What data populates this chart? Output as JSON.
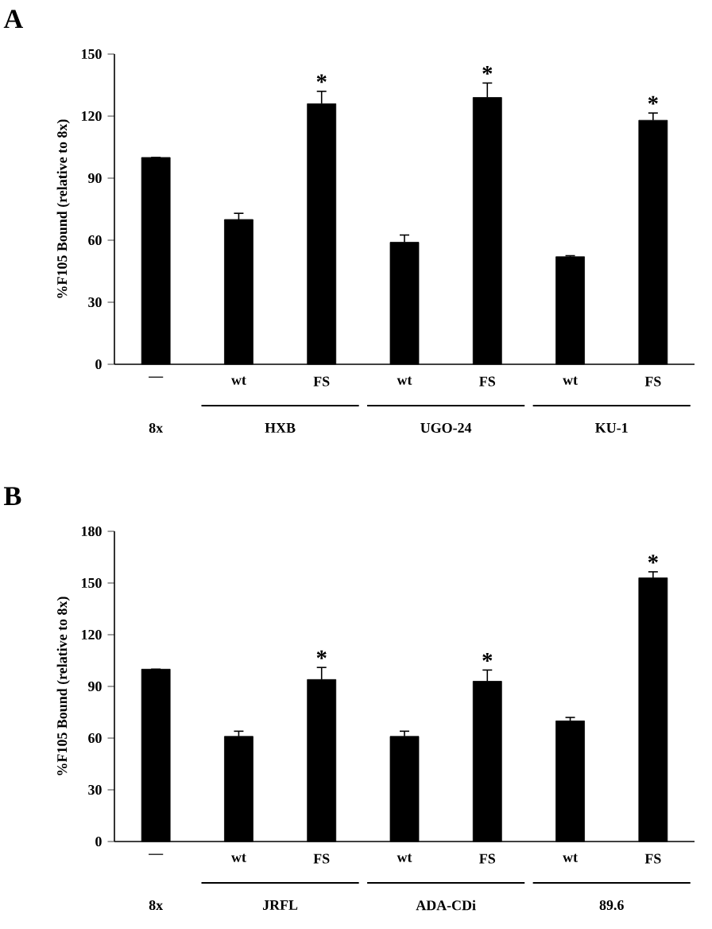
{
  "chart_data": [
    {
      "type": "bar",
      "title": "A",
      "ylabel": "%F105 Bound (relative to 8x)",
      "categories": [
        "—",
        "wt",
        "FS",
        "wt",
        "FS",
        "wt",
        "FS"
      ],
      "values": [
        100,
        70,
        126,
        59,
        129,
        52,
        118
      ],
      "errors": [
        null,
        3,
        6,
        3.5,
        7,
        0.5,
        3.5
      ],
      "color": "#000000",
      "value_labels": [
        null,
        null,
        "*",
        null,
        "*",
        null,
        "*"
      ],
      "annotations": [
        "8x",
        "HXB",
        "UGO-24",
        "KU-1"
      ],
      "ylim": [
        0,
        150
      ],
      "yticks": [
        0,
        30,
        60,
        90,
        120,
        150
      ]
    },
    {
      "type": "bar",
      "title": "B",
      "ylabel": "%F105 Bound (relative to 8x)",
      "categories": [
        "—",
        "wt",
        "FS",
        "wt",
        "FS",
        "wt",
        "FS"
      ],
      "values": [
        100,
        61,
        94,
        61,
        93,
        70,
        153
      ],
      "errors": [
        null,
        3,
        7,
        3,
        6.5,
        2,
        3.5
      ],
      "color": "#000000",
      "value_labels": [
        null,
        null,
        "*",
        null,
        "*",
        null,
        "*"
      ],
      "annotations": [
        "8x",
        "JRFL",
        "ADA-CDi",
        "89.6"
      ],
      "ylim": [
        0,
        180
      ],
      "yticks": [
        0,
        30,
        60,
        90,
        120,
        150,
        180
      ]
    }
  ]
}
